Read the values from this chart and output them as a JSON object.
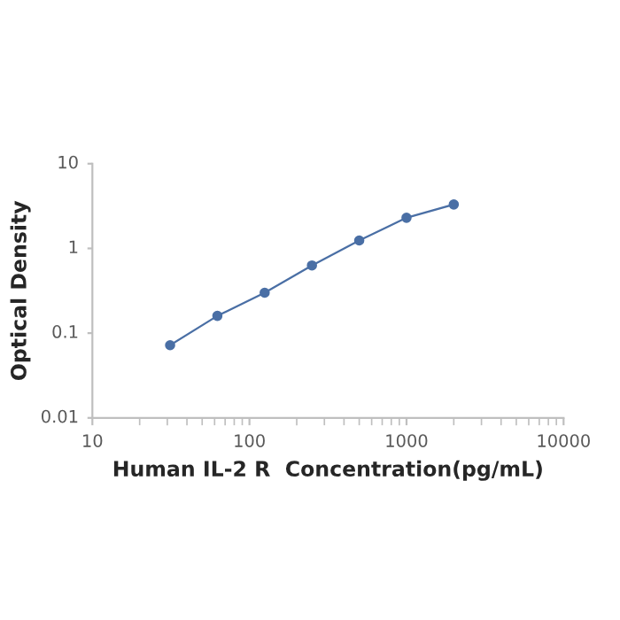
{
  "chart_data": {
    "type": "line",
    "xlabel": "Human IL-2 R  Concentration(pg/mL)",
    "ylabel": "Optical Density",
    "log": "xy",
    "x": [
      31.25,
      62.5,
      125,
      250,
      500,
      1000,
      2000
    ],
    "series": [
      {
        "color": "#4a6fa5",
        "values": [
          0.072,
          0.16,
          0.3,
          0.63,
          1.24,
          2.3,
          3.3
        ]
      }
    ],
    "xlim": [
      10,
      10000
    ],
    "xticks": [
      10,
      100,
      1000,
      10000
    ],
    "ylim": [
      0.01,
      10
    ],
    "yticks": [
      0.01,
      0.1,
      1,
      10
    ],
    "marker": "circle",
    "line_style": "solid",
    "grid": false,
    "legend": false
  }
}
